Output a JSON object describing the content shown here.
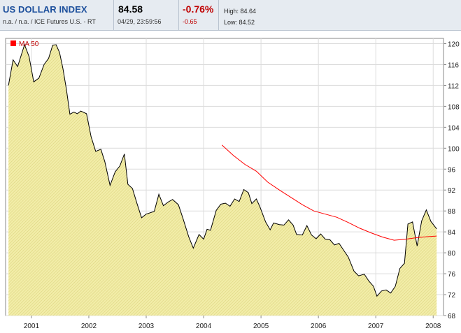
{
  "header": {
    "title": "US DOLLAR INDEX",
    "subtitle": "n.a. / n.a. / ICE Futures U.S. - RT",
    "last_price": "84.58",
    "timestamp": "04/29, 23:59:56",
    "pct_change": "-0.76%",
    "abs_change": "-0.65",
    "high": "High: 84.64",
    "low": "Low: 84.52",
    "colors": {
      "title": "#1c4f9c",
      "negative": "#c00000"
    }
  },
  "chart_data": {
    "type": "area",
    "x_ticks": [
      "2001",
      "2002",
      "2003",
      "2004",
      "2005",
      "2006",
      "2007",
      "2008"
    ],
    "y_ticks": [
      "120",
      "116",
      "112",
      "108",
      "104",
      "100",
      "96",
      "92",
      "88",
      "84",
      "80",
      "76",
      "72",
      "68"
    ],
    "ylim": [
      68,
      121
    ],
    "grid": true,
    "legend": {
      "position": "top-left",
      "label": "MA 50",
      "color": "#ff0000"
    },
    "series": [
      {
        "style": "area",
        "fill": "#f0eba0",
        "stroke": "#000000",
        "points": [
          [
            2000.6,
            112.0
          ],
          [
            2000.68,
            116.9
          ],
          [
            2000.76,
            115.6
          ],
          [
            2000.88,
            119.8
          ],
          [
            2000.96,
            117.5
          ],
          [
            2001.04,
            112.7
          ],
          [
            2001.13,
            113.4
          ],
          [
            2001.22,
            116.0
          ],
          [
            2001.3,
            117.2
          ],
          [
            2001.37,
            119.7
          ],
          [
            2001.43,
            119.8
          ],
          [
            2001.49,
            118.3
          ],
          [
            2001.55,
            115.2
          ],
          [
            2001.61,
            111.2
          ],
          [
            2001.67,
            106.5
          ],
          [
            2001.74,
            106.9
          ],
          [
            2001.8,
            106.6
          ],
          [
            2001.86,
            107.1
          ],
          [
            2001.96,
            106.6
          ],
          [
            2002.04,
            102.2
          ],
          [
            2002.12,
            99.4
          ],
          [
            2002.21,
            99.8
          ],
          [
            2002.28,
            97.4
          ],
          [
            2002.37,
            92.9
          ],
          [
            2002.46,
            95.5
          ],
          [
            2002.54,
            96.6
          ],
          [
            2002.62,
            98.9
          ],
          [
            2002.68,
            93.1
          ],
          [
            2002.76,
            92.3
          ],
          [
            2002.84,
            89.4
          ],
          [
            2002.92,
            86.7
          ],
          [
            2003.0,
            87.4
          ],
          [
            2003.14,
            87.9
          ],
          [
            2003.22,
            91.2
          ],
          [
            2003.3,
            89.0
          ],
          [
            2003.38,
            89.7
          ],
          [
            2003.46,
            90.2
          ],
          [
            2003.56,
            89.2
          ],
          [
            2003.64,
            86.6
          ],
          [
            2003.74,
            83.1
          ],
          [
            2003.82,
            80.9
          ],
          [
            2003.92,
            83.5
          ],
          [
            2004.0,
            82.6
          ],
          [
            2004.06,
            84.5
          ],
          [
            2004.12,
            84.3
          ],
          [
            2004.22,
            88.1
          ],
          [
            2004.3,
            89.3
          ],
          [
            2004.38,
            89.5
          ],
          [
            2004.46,
            88.9
          ],
          [
            2004.54,
            90.3
          ],
          [
            2004.62,
            89.8
          ],
          [
            2004.7,
            92.1
          ],
          [
            2004.78,
            91.5
          ],
          [
            2004.84,
            89.4
          ],
          [
            2004.92,
            90.3
          ],
          [
            2004.98,
            88.8
          ],
          [
            2005.08,
            85.9
          ],
          [
            2005.16,
            84.4
          ],
          [
            2005.22,
            85.7
          ],
          [
            2005.32,
            85.4
          ],
          [
            2005.4,
            85.3
          ],
          [
            2005.48,
            86.3
          ],
          [
            2005.56,
            85.3
          ],
          [
            2005.62,
            83.5
          ],
          [
            2005.72,
            83.4
          ],
          [
            2005.8,
            85.2
          ],
          [
            2005.88,
            83.4
          ],
          [
            2005.96,
            82.7
          ],
          [
            2006.04,
            83.6
          ],
          [
            2006.12,
            82.6
          ],
          [
            2006.2,
            82.5
          ],
          [
            2006.28,
            81.5
          ],
          [
            2006.36,
            81.8
          ],
          [
            2006.44,
            80.5
          ],
          [
            2006.52,
            79.2
          ],
          [
            2006.62,
            76.5
          ],
          [
            2006.7,
            75.6
          ],
          [
            2006.8,
            75.9
          ],
          [
            2006.88,
            74.6
          ],
          [
            2006.96,
            73.6
          ],
          [
            2007.02,
            71.7
          ],
          [
            2007.1,
            72.7
          ],
          [
            2007.18,
            72.9
          ],
          [
            2007.26,
            72.3
          ],
          [
            2007.34,
            73.6
          ],
          [
            2007.42,
            77.0
          ],
          [
            2007.5,
            78.0
          ],
          [
            2007.56,
            85.5
          ],
          [
            2007.64,
            85.9
          ],
          [
            2007.72,
            81.3
          ],
          [
            2007.8,
            86.1
          ],
          [
            2007.88,
            88.2
          ],
          [
            2007.96,
            86.0
          ],
          [
            2008.06,
            84.58
          ]
        ]
      },
      {
        "name": "MA 50",
        "style": "line",
        "stroke": "#ff0000",
        "points": [
          [
            2004.32,
            100.6
          ],
          [
            2004.52,
            98.6
          ],
          [
            2004.72,
            96.9
          ],
          [
            2004.92,
            95.6
          ],
          [
            2005.12,
            93.5
          ],
          [
            2005.32,
            92.0
          ],
          [
            2005.52,
            90.6
          ],
          [
            2005.72,
            89.2
          ],
          [
            2005.92,
            88.0
          ],
          [
            2006.12,
            87.4
          ],
          [
            2006.32,
            86.8
          ],
          [
            2006.52,
            85.8
          ],
          [
            2006.72,
            84.7
          ],
          [
            2006.92,
            83.8
          ],
          [
            2007.12,
            83.0
          ],
          [
            2007.32,
            82.4
          ],
          [
            2007.52,
            82.6
          ],
          [
            2007.72,
            82.9
          ],
          [
            2007.92,
            83.1
          ],
          [
            2008.06,
            83.2
          ]
        ]
      }
    ]
  }
}
